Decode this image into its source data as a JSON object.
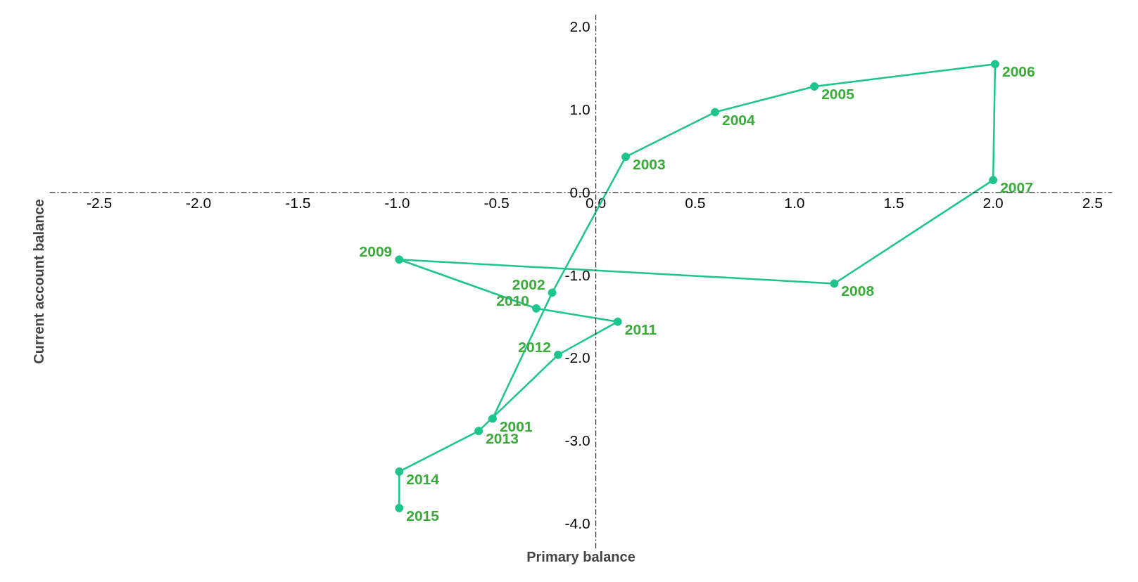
{
  "chart_data": {
    "type": "line",
    "xlabel": "Primary balance",
    "ylabel": "Current account balance",
    "xlim": [
      -2.75,
      2.6
    ],
    "ylim": [
      -4.3,
      2.15
    ],
    "xticks": [
      -2.5,
      {
        "value": -2,
        "label": "-2.0"
      },
      -1.5,
      {
        "value": -1,
        "label": "-1.0"
      },
      -0.5,
      {
        "value": 0,
        "label": "0.0"
      },
      0.5,
      {
        "value": 1,
        "label": "1.0"
      },
      1.5,
      {
        "value": 2,
        "label": "2.0"
      },
      2.5
    ],
    "yticks": [
      {
        "value": -4,
        "label": "-4.0"
      },
      {
        "value": -3,
        "label": "-3.0"
      },
      {
        "value": -2,
        "label": "-2.0"
      },
      {
        "value": -1,
        "label": "-1.0"
      },
      {
        "value": 0,
        "label": "0.0"
      },
      {
        "value": 1,
        "label": "1.0"
      },
      {
        "value": 2,
        "label": "2.0"
      }
    ],
    "marker": "circle",
    "line_style": "solid",
    "series": [
      {
        "color": "#1dc48c",
        "x": [
          -0.52,
          -0.22,
          0.15,
          0.6,
          1.1,
          2.01,
          2.0,
          1.2,
          -0.99,
          -0.3,
          0.11,
          -0.19,
          -0.59,
          -0.99,
          -0.99
        ],
        "values": [
          -2.73,
          -1.21,
          0.43,
          0.97,
          1.28,
          1.55,
          0.15,
          -1.1,
          -0.81,
          -1.4,
          -1.56,
          -1.96,
          -2.88,
          -3.37,
          -3.81
        ]
      }
    ],
    "annotations": [
      {
        "text": "2001",
        "x": -0.52,
        "y": -2.73
      },
      {
        "text": "2002",
        "x": -0.22,
        "y": -1.21
      },
      {
        "text": "2003",
        "x": 0.15,
        "y": 0.43
      },
      {
        "text": "2004",
        "x": 0.6,
        "y": 0.97
      },
      {
        "text": "2005",
        "x": 1.1,
        "y": 1.28
      },
      {
        "text": "2006",
        "x": 2.01,
        "y": 1.55
      },
      {
        "text": "2007",
        "x": 2.0,
        "y": 0.15
      },
      {
        "text": "2008",
        "x": 1.2,
        "y": -1.1
      },
      {
        "text": "2009",
        "x": -0.99,
        "y": -0.81
      },
      {
        "text": "2010",
        "x": -0.3,
        "y": -1.4
      },
      {
        "text": "2011",
        "x": 0.11,
        "y": -1.56
      },
      {
        "text": "2012",
        "x": -0.19,
        "y": -1.96
      },
      {
        "text": "2013",
        "x": -0.59,
        "y": -2.88
      },
      {
        "text": "2014",
        "x": -0.99,
        "y": -3.37
      },
      {
        "text": "2015",
        "x": -0.99,
        "y": -3.81
      }
    ]
  }
}
